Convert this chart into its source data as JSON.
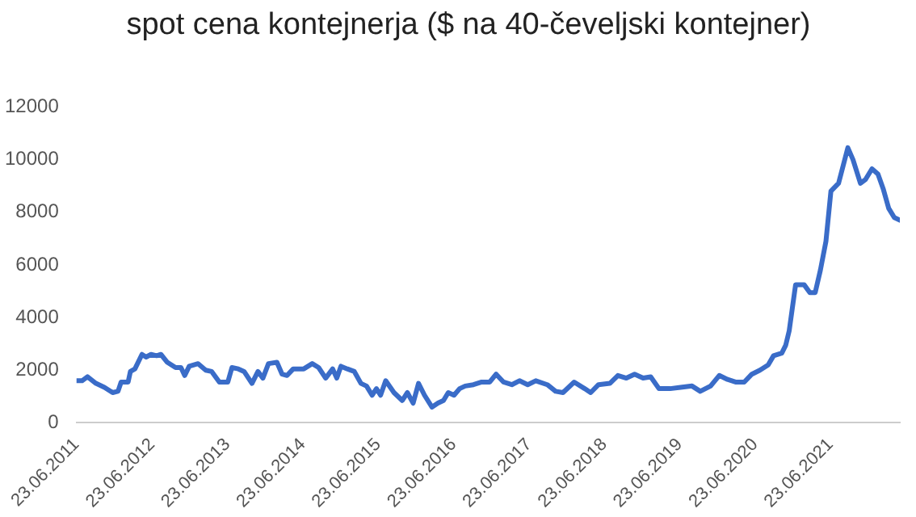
{
  "chart_data": {
    "type": "line",
    "title": "spot cena kontejnerja ($ na 40-čeveljski kontejner)",
    "x": [
      "2011-06-23",
      "2011-07-20",
      "2011-08-15",
      "2011-09-25",
      "2011-11-05",
      "2011-12-15",
      "2012-01-10",
      "2012-01-25",
      "2012-02-28",
      "2012-03-10",
      "2012-04-01",
      "2012-05-05",
      "2012-05-25",
      "2012-06-18",
      "2012-07-15",
      "2012-08-05",
      "2012-09-05",
      "2012-10-15",
      "2012-11-10",
      "2012-11-28",
      "2012-12-20",
      "2013-02-01",
      "2013-03-10",
      "2013-04-08",
      "2013-05-15",
      "2013-06-25",
      "2013-07-15",
      "2013-08-15",
      "2013-09-12",
      "2013-10-20",
      "2013-11-18",
      "2013-12-12",
      "2014-01-08",
      "2014-02-18",
      "2014-03-15",
      "2014-04-08",
      "2014-05-08",
      "2014-06-28",
      "2014-08-08",
      "2014-09-08",
      "2014-10-12",
      "2014-11-15",
      "2014-12-05",
      "2014-12-25",
      "2015-01-25",
      "2015-02-28",
      "2015-04-01",
      "2015-04-28",
      "2015-05-25",
      "2015-06-15",
      "2015-07-05",
      "2015-07-30",
      "2015-09-08",
      "2015-10-18",
      "2015-11-12",
      "2015-12-10",
      "2016-01-05",
      "2016-02-03",
      "2016-03-10",
      "2016-04-08",
      "2016-05-05",
      "2016-05-28",
      "2016-06-25",
      "2016-07-22",
      "2016-08-18",
      "2016-09-27",
      "2016-11-06",
      "2016-12-15",
      "2017-01-15",
      "2017-02-20",
      "2017-04-01",
      "2017-05-08",
      "2017-06-17",
      "2017-07-26",
      "2017-09-20",
      "2017-10-30",
      "2017-12-05",
      "2018-01-28",
      "2018-03-20",
      "2018-04-18",
      "2018-05-26",
      "2018-07-20",
      "2018-08-28",
      "2018-10-08",
      "2018-11-17",
      "2018-12-28",
      "2019-02-03",
      "2019-03-15",
      "2019-05-08",
      "2019-06-28",
      "2019-08-22",
      "2019-10-01",
      "2019-11-20",
      "2020-01-01",
      "2020-02-10",
      "2020-03-20",
      "2020-05-01",
      "2020-06-07",
      "2020-07-16",
      "2020-08-25",
      "2020-09-20",
      "2020-10-30",
      "2020-11-18",
      "2020-12-05",
      "2020-12-20",
      "2021-01-05",
      "2021-02-15",
      "2021-03-15",
      "2021-04-10",
      "2021-05-05",
      "2021-06-01",
      "2021-06-25",
      "2021-08-01",
      "2021-09-15",
      "2021-10-10",
      "2021-11-15",
      "2021-12-10",
      "2022-01-10",
      "2022-02-08",
      "2022-03-05",
      "2022-04-01",
      "2022-04-28",
      "2022-05-25"
    ],
    "series": [
      {
        "color": "#3a6cc8",
        "values": [
          1600,
          1600,
          1750,
          1500,
          1350,
          1150,
          1200,
          1550,
          1550,
          1950,
          2050,
          2600,
          2500,
          2600,
          2550,
          2600,
          2300,
          2100,
          2100,
          1800,
          2150,
          2250,
          2000,
          1950,
          1550,
          1550,
          2100,
          2050,
          1950,
          1500,
          1950,
          1700,
          2250,
          2300,
          1850,
          1800,
          2050,
          2050,
          2250,
          2100,
          1700,
          2050,
          1700,
          2150,
          2050,
          1950,
          1500,
          1400,
          1050,
          1300,
          1050,
          1600,
          1150,
          850,
          1150,
          750,
          1500,
          1050,
          600,
          750,
          850,
          1150,
          1050,
          1300,
          1400,
          1450,
          1550,
          1550,
          1850,
          1550,
          1450,
          1600,
          1450,
          1600,
          1450,
          1200,
          1150,
          1550,
          1300,
          1150,
          1450,
          1500,
          1800,
          1700,
          1850,
          1700,
          1750,
          1300,
          1300,
          1350,
          1400,
          1200,
          1400,
          1800,
          1650,
          1550,
          1550,
          1850,
          2000,
          2200,
          2550,
          2650,
          2950,
          3500,
          4350,
          5250,
          5250,
          4950,
          4950,
          5800,
          6900,
          8800,
          9100,
          10450,
          10000,
          9100,
          9250,
          9650,
          9450,
          8900,
          8150,
          7800,
          7700
        ]
      }
    ],
    "xlim": [
      "2011-06-23",
      "2022-05-25"
    ],
    "xticks": [
      {
        "value": "2011-06-23",
        "label": "23.06.2011"
      },
      {
        "value": "2012-06-23",
        "label": "23.06.2012"
      },
      {
        "value": "2013-06-23",
        "label": "23.06.2013"
      },
      {
        "value": "2014-06-23",
        "label": "23.06.2014"
      },
      {
        "value": "2015-06-23",
        "label": "23.06.2015"
      },
      {
        "value": "2016-06-23",
        "label": "23.06.2016"
      },
      {
        "value": "2017-06-23",
        "label": "23.06.2017"
      },
      {
        "value": "2018-06-23",
        "label": "23.06.2018"
      },
      {
        "value": "2019-06-23",
        "label": "23.06.2019"
      },
      {
        "value": "2020-06-23",
        "label": "23.06.2020"
      },
      {
        "value": "2021-06-23",
        "label": "23.06.2021"
      }
    ],
    "ylim": [
      0,
      12000
    ],
    "yticks": [
      0,
      2000,
      4000,
      6000,
      8000,
      10000,
      12000
    ],
    "grid": false,
    "legend": false,
    "marker": "none",
    "line_style": "solid"
  }
}
